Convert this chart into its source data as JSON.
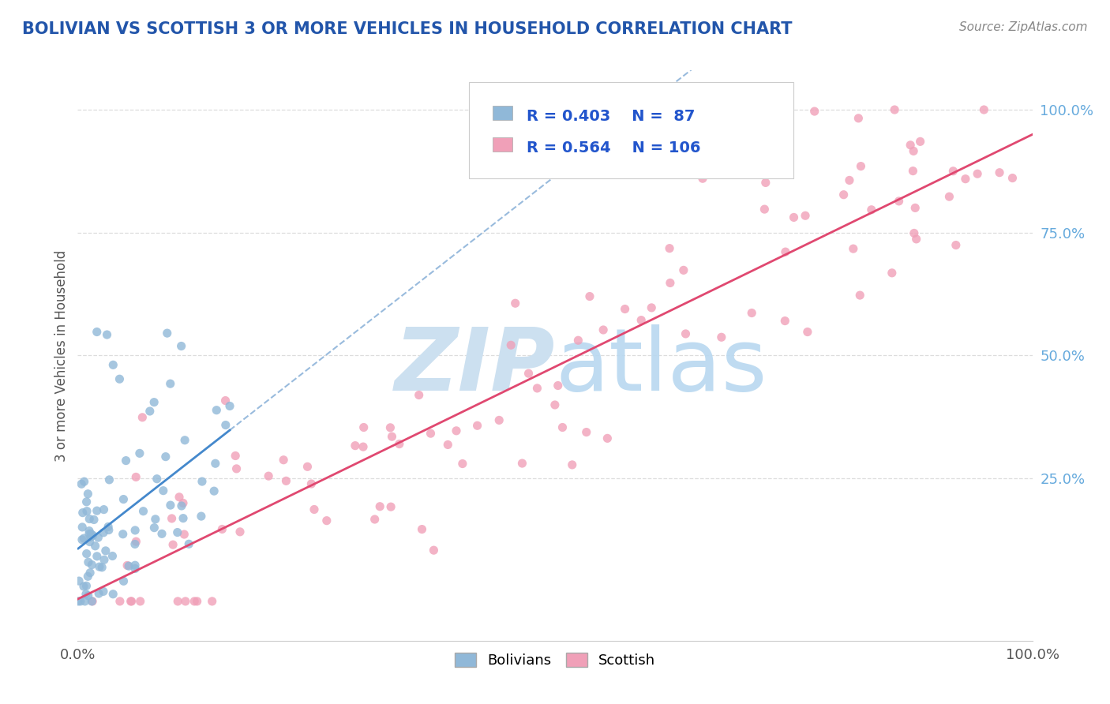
{
  "title": "BOLIVIAN VS SCOTTISH 3 OR MORE VEHICLES IN HOUSEHOLD CORRELATION CHART",
  "source_text": "Source: ZipAtlas.com",
  "ylabel": "3 or more Vehicles in Household",
  "r_bolivian": 0.403,
  "n_bolivian": 87,
  "r_scottish": 0.564,
  "n_scottish": 106,
  "bolivian_color": "#90b8d8",
  "scottish_color": "#f0a0b8",
  "bolivian_line_color": "#4488cc",
  "scottish_line_color": "#e04870",
  "bolivian_dash_color": "#99bbdd",
  "watermark_color": "#cce0f0",
  "background_color": "#ffffff",
  "title_color": "#2255aa",
  "source_color": "#888888",
  "legend_r_color": "#2255cc",
  "grid_color": "#dddddd",
  "ytick_color": "#66aadd",
  "spine_color": "#cccccc"
}
